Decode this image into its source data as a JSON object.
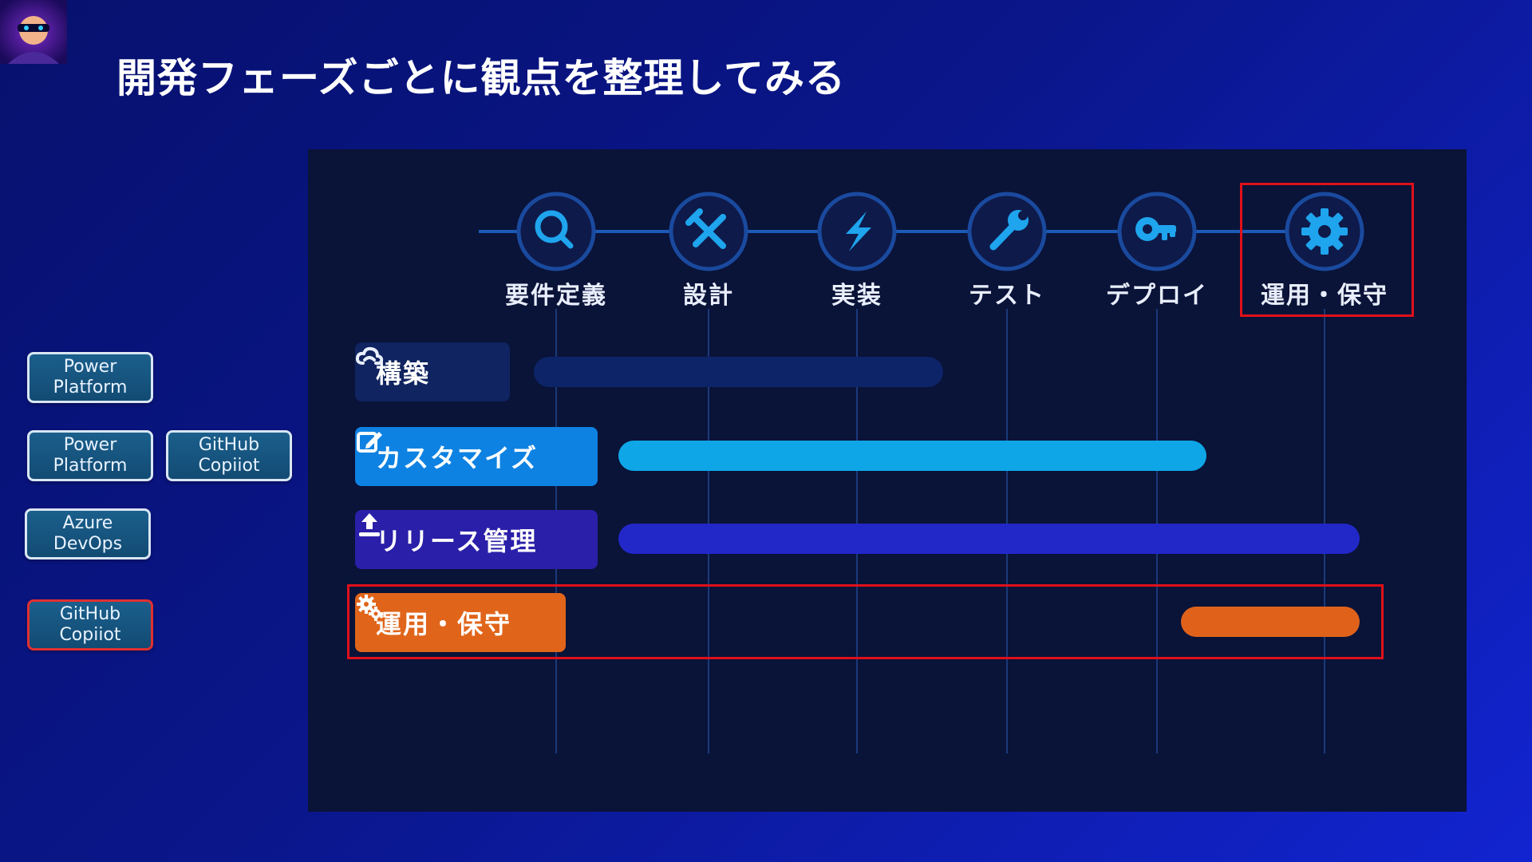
{
  "title": "開発フェーズごとに観点を整理してみる",
  "colors": {
    "background": "#0a168a",
    "panel": "#0a1338",
    "highlight": "#e0101a"
  },
  "tags": [
    {
      "line1": "Power",
      "line2": "Platform"
    },
    {
      "line1": "Power",
      "line2": "Platform"
    },
    {
      "line1": "GitHub",
      "line2": "Copiiot"
    },
    {
      "line1": "Azure",
      "line2": "DevOps"
    },
    {
      "line1": "GitHub",
      "line2": "Copiiot",
      "highlighted": true
    }
  ],
  "phases": [
    {
      "label": "要件定義",
      "icon": "search-icon"
    },
    {
      "label": "設計",
      "icon": "tools-icon"
    },
    {
      "label": "実装",
      "icon": "lightning-icon"
    },
    {
      "label": "テスト",
      "icon": "wrench-icon"
    },
    {
      "label": "デプロイ",
      "icon": "key-icon"
    },
    {
      "label": "運用・保守",
      "icon": "gear-icon",
      "highlighted": true
    }
  ],
  "categories": [
    {
      "label": "構築",
      "icon": "cloud-icon",
      "color": "#0f2460",
      "bar_color": "#0d2468"
    },
    {
      "label": "カスタマイズ",
      "icon": "edit-icon",
      "color": "#0e82e2",
      "bar_color": "#0ea6e6"
    },
    {
      "label": "リリース管理",
      "icon": "upload-icon",
      "color": "#2a1fa8",
      "bar_color": "#2228c8"
    },
    {
      "label": "運用・保守",
      "icon": "gears-icon",
      "color": "#e0651a",
      "bar_color": "#e0621a",
      "highlighted": true
    }
  ]
}
